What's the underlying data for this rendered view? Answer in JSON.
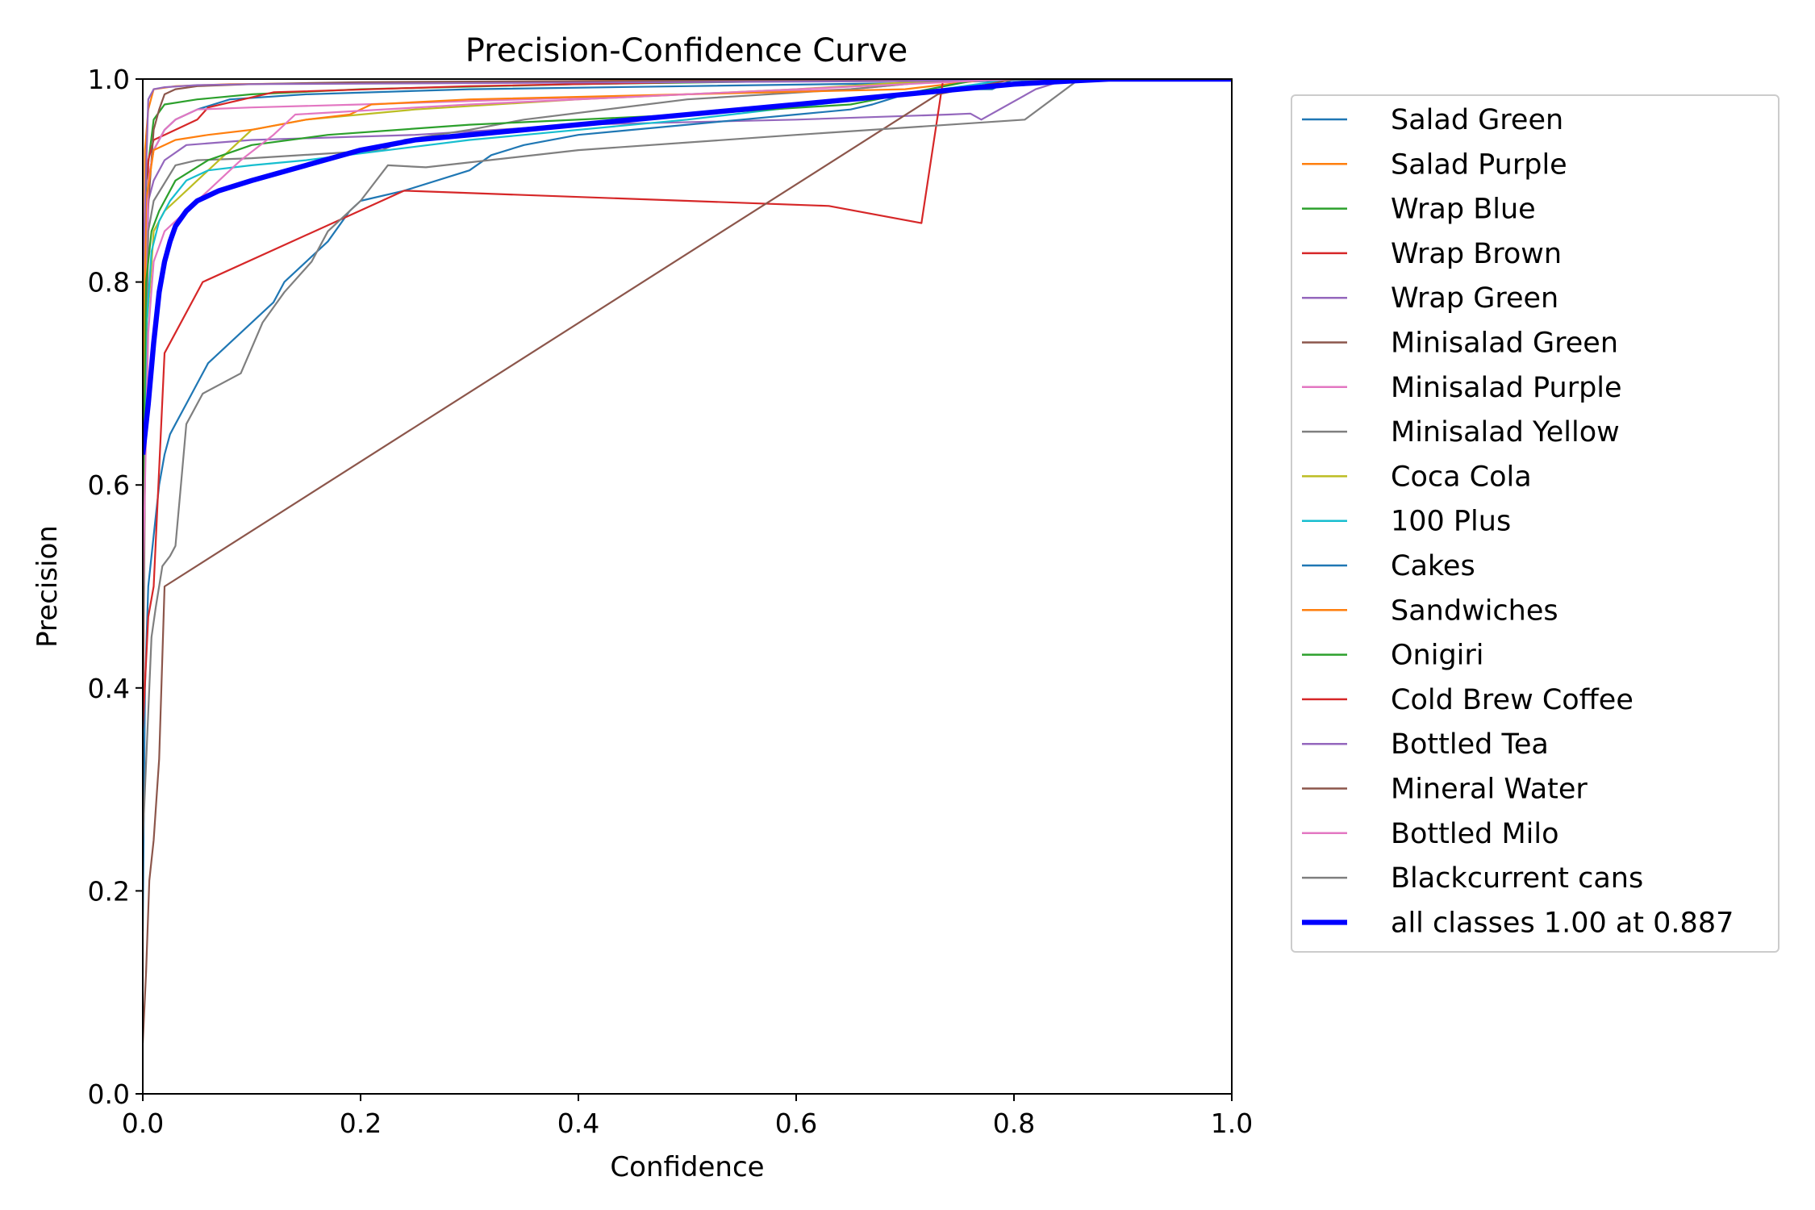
{
  "chart_data": {
    "type": "line",
    "title": "Precision-Confidence Curve",
    "xlabel": "Confidence",
    "ylabel": "Precision",
    "xlim": [
      0,
      1
    ],
    "ylim": [
      0,
      1
    ],
    "xticks": [
      "0.0",
      "0.2",
      "0.4",
      "0.6",
      "0.8",
      "1.0"
    ],
    "yticks": [
      "0.0",
      "0.2",
      "0.4",
      "0.6",
      "0.8",
      "1.0"
    ],
    "grid": false,
    "legend_position": "outside-right",
    "series": [
      {
        "name": "Salad Green",
        "color": "#1f77b4",
        "x": [
          0.0,
          0.002,
          0.005,
          0.01,
          0.02,
          0.03,
          0.05,
          0.08,
          0.15,
          0.3,
          0.5,
          0.7,
          0.85,
          1.0
        ],
        "y": [
          0.4,
          0.8,
          0.9,
          0.93,
          0.95,
          0.96,
          0.97,
          0.98,
          0.985,
          0.99,
          0.993,
          0.996,
          1.0,
          1.0
        ]
      },
      {
        "name": "Salad Purple",
        "color": "#ff7f0e",
        "x": [
          0.0,
          0.002,
          0.005,
          0.01,
          0.03,
          0.08,
          0.2,
          0.4,
          0.6,
          0.75,
          1.0
        ],
        "y": [
          0.55,
          0.93,
          0.97,
          0.99,
          0.993,
          0.995,
          0.996,
          0.998,
          1.0,
          1.0,
          1.0
        ]
      },
      {
        "name": "Wrap Blue",
        "color": "#2ca02c",
        "x": [
          0.0,
          0.003,
          0.01,
          0.02,
          0.05,
          0.1,
          0.2,
          0.4,
          0.6,
          0.75,
          1.0
        ],
        "y": [
          0.6,
          0.9,
          0.96,
          0.975,
          0.98,
          0.985,
          0.99,
          0.995,
          0.998,
          1.0,
          1.0
        ]
      },
      {
        "name": "Wrap Brown",
        "color": "#d62728",
        "x": [
          0.0,
          0.005,
          0.01,
          0.02,
          0.05,
          0.06,
          0.12,
          0.3,
          0.5,
          0.75,
          1.0
        ],
        "y": [
          0.45,
          0.92,
          0.94,
          0.945,
          0.96,
          0.972,
          0.987,
          0.993,
          0.997,
          1.0,
          1.0
        ]
      },
      {
        "name": "Wrap Green",
        "color": "#9467bd",
        "x": [
          0.0,
          0.005,
          0.01,
          0.02,
          0.04,
          0.1,
          0.25,
          0.4,
          0.6,
          0.74,
          0.76,
          0.77,
          0.82,
          0.85,
          1.0
        ],
        "y": [
          0.5,
          0.88,
          0.9,
          0.92,
          0.935,
          0.94,
          0.945,
          0.955,
          0.96,
          0.965,
          0.966,
          0.96,
          0.99,
          1.0,
          1.0
        ]
      },
      {
        "name": "Minisalad Green",
        "color": "#8c564b",
        "x": [
          0.0,
          0.004,
          0.01,
          0.015,
          0.02,
          0.03,
          0.05,
          0.1,
          0.2,
          0.4,
          0.6,
          0.75,
          1.0
        ],
        "y": [
          0.35,
          0.86,
          0.95,
          0.97,
          0.985,
          0.99,
          0.993,
          0.995,
          0.997,
          0.998,
          0.999,
          1.0,
          1.0
        ]
      },
      {
        "name": "Minisalad Purple",
        "color": "#e377c2",
        "x": [
          0.0,
          0.005,
          0.01,
          0.02,
          0.03,
          0.05,
          0.1,
          0.2,
          0.35,
          0.5,
          0.65,
          0.75,
          1.0
        ],
        "y": [
          0.65,
          0.9,
          0.93,
          0.95,
          0.96,
          0.97,
          0.972,
          0.975,
          0.98,
          0.985,
          0.99,
          1.0,
          1.0
        ]
      },
      {
        "name": "Minisalad Yellow",
        "color": "#7f7f7f",
        "x": [
          0.0,
          0.005,
          0.01,
          0.03,
          0.05,
          0.1,
          0.22,
          0.24,
          0.3,
          0.35,
          0.5,
          0.65,
          0.75,
          1.0
        ],
        "y": [
          0.45,
          0.85,
          0.88,
          0.915,
          0.92,
          0.922,
          0.93,
          0.94,
          0.95,
          0.96,
          0.98,
          0.99,
          1.0,
          1.0
        ]
      },
      {
        "name": "Coca Cola",
        "color": "#bcbd22",
        "x": [
          0.0,
          0.003,
          0.007,
          0.01,
          0.02,
          0.03,
          0.04,
          0.05,
          0.08,
          0.1,
          0.15,
          0.25,
          0.4,
          0.6,
          0.75,
          1.0
        ],
        "y": [
          0.55,
          0.75,
          0.8,
          0.85,
          0.87,
          0.88,
          0.89,
          0.9,
          0.93,
          0.95,
          0.96,
          0.97,
          0.98,
          0.99,
          1.0,
          1.0
        ]
      },
      {
        "name": "100 Plus",
        "color": "#17becf",
        "x": [
          0.0,
          0.003,
          0.008,
          0.015,
          0.025,
          0.04,
          0.06,
          0.1,
          0.15,
          0.3,
          0.5,
          0.7,
          0.8,
          1.0
        ],
        "y": [
          0.5,
          0.75,
          0.83,
          0.86,
          0.88,
          0.9,
          0.91,
          0.915,
          0.92,
          0.94,
          0.96,
          0.985,
          1.0,
          1.0
        ]
      },
      {
        "name": "Cakes",
        "color": "#1f77b4",
        "x": [
          0.0,
          0.002,
          0.005,
          0.01,
          0.015,
          0.02,
          0.025,
          0.03,
          0.04,
          0.05,
          0.06,
          0.08,
          0.1,
          0.12,
          0.13,
          0.15,
          0.17,
          0.19,
          0.2,
          0.24,
          0.3,
          0.32,
          0.35,
          0.4,
          0.45,
          0.5,
          0.55,
          0.6,
          0.65,
          0.67,
          0.7,
          0.75,
          0.78,
          0.8,
          1.0
        ],
        "y": [
          0.16,
          0.4,
          0.5,
          0.55,
          0.6,
          0.63,
          0.65,
          0.66,
          0.68,
          0.7,
          0.72,
          0.74,
          0.76,
          0.78,
          0.8,
          0.82,
          0.84,
          0.87,
          0.88,
          0.89,
          0.91,
          0.925,
          0.935,
          0.945,
          0.95,
          0.955,
          0.96,
          0.965,
          0.97,
          0.975,
          0.985,
          0.99,
          0.99,
          1.0,
          1.0
        ]
      },
      {
        "name": "Sandwiches",
        "color": "#ff7f0e",
        "x": [
          0.0,
          0.003,
          0.01,
          0.03,
          0.06,
          0.1,
          0.15,
          0.19,
          0.21,
          0.3,
          0.5,
          0.7,
          0.78,
          1.0
        ],
        "y": [
          0.6,
          0.88,
          0.93,
          0.94,
          0.945,
          0.95,
          0.96,
          0.965,
          0.975,
          0.98,
          0.985,
          0.99,
          1.0,
          1.0
        ]
      },
      {
        "name": "Onigiri",
        "color": "#2ca02c",
        "x": [
          0.0,
          0.003,
          0.008,
          0.015,
          0.03,
          0.06,
          0.1,
          0.17,
          0.3,
          0.5,
          0.65,
          0.77,
          1.0
        ],
        "y": [
          0.55,
          0.8,
          0.85,
          0.87,
          0.9,
          0.92,
          0.935,
          0.945,
          0.955,
          0.965,
          0.975,
          1.0,
          1.0
        ]
      },
      {
        "name": "Cold Brew Coffee",
        "color": "#d62728",
        "x": [
          0.0,
          0.005,
          0.01,
          0.02,
          0.055,
          0.24,
          0.63,
          0.715,
          0.735,
          0.75,
          1.0
        ],
        "y": [
          0.36,
          0.47,
          0.5,
          0.73,
          0.8,
          0.89,
          0.875,
          0.858,
          1.0,
          1.0,
          1.0
        ]
      },
      {
        "name": "Bottled Tea",
        "color": "#9467bd",
        "x": [
          0.0,
          0.005,
          0.01,
          0.02,
          0.05,
          0.1,
          0.3,
          0.5,
          0.7,
          0.8,
          1.0
        ],
        "y": [
          0.8,
          0.98,
          0.99,
          0.992,
          0.994,
          0.995,
          0.996,
          0.997,
          0.998,
          1.0,
          1.0
        ]
      },
      {
        "name": "Mineral Water",
        "color": "#8c564b",
        "x": [
          0.0,
          0.003,
          0.006,
          0.01,
          0.015,
          0.02,
          0.73,
          0.8,
          1.0
        ],
        "y": [
          0.05,
          0.12,
          0.21,
          0.25,
          0.33,
          0.5,
          0.985,
          1.0,
          1.0
        ]
      },
      {
        "name": "Bottled Milo",
        "color": "#e377c2",
        "x": [
          0.0,
          0.005,
          0.01,
          0.02,
          0.04,
          0.06,
          0.09,
          0.12,
          0.14,
          0.3,
          0.5,
          0.7,
          0.8,
          1.0
        ],
        "y": [
          0.5,
          0.75,
          0.82,
          0.85,
          0.87,
          0.89,
          0.92,
          0.945,
          0.965,
          0.975,
          0.985,
          0.995,
          1.0,
          1.0
        ]
      },
      {
        "name": "Blackcurrent cans",
        "color": "#7f7f7f",
        "x": [
          0.0,
          0.004,
          0.008,
          0.012,
          0.018,
          0.025,
          0.03,
          0.035,
          0.04,
          0.055,
          0.09,
          0.1,
          0.11,
          0.13,
          0.155,
          0.17,
          0.2,
          0.225,
          0.26,
          0.4,
          0.6,
          0.81,
          0.86,
          1.0
        ],
        "y": [
          0.25,
          0.35,
          0.45,
          0.48,
          0.52,
          0.53,
          0.54,
          0.6,
          0.66,
          0.69,
          0.71,
          0.735,
          0.76,
          0.79,
          0.82,
          0.85,
          0.88,
          0.915,
          0.913,
          0.93,
          0.945,
          0.96,
          1.0,
          1.0
        ]
      },
      {
        "name": "all classes 1.00 at 0.887",
        "color": "#0000ff",
        "width": 6.4,
        "x": [
          0.0,
          0.005,
          0.01,
          0.015,
          0.02,
          0.025,
          0.03,
          0.04,
          0.05,
          0.07,
          0.1,
          0.15,
          0.2,
          0.25,
          0.3,
          0.4,
          0.5,
          0.6,
          0.7,
          0.75,
          0.8,
          0.85,
          0.887,
          1.0
        ],
        "y": [
          0.63,
          0.68,
          0.74,
          0.79,
          0.82,
          0.84,
          0.855,
          0.87,
          0.88,
          0.89,
          0.9,
          0.915,
          0.93,
          0.94,
          0.945,
          0.955,
          0.965,
          0.975,
          0.985,
          0.99,
          0.995,
          0.998,
          1.0,
          1.0
        ]
      }
    ]
  }
}
